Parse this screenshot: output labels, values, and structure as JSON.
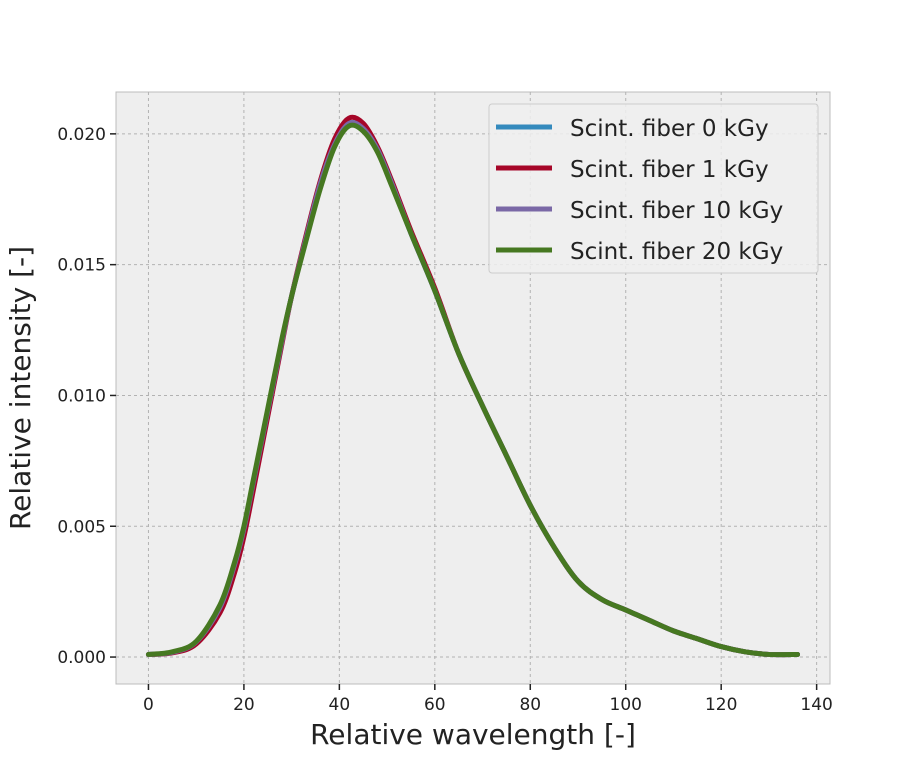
{
  "chart_data": {
    "type": "line",
    "title": "",
    "xlabel": "Relative wavelength [-]",
    "ylabel": "Relative intensity [-]",
    "xlim": [
      -6.8,
      142.8
    ],
    "ylim": [
      -0.00103,
      0.0216
    ],
    "xticks": [
      0,
      20,
      40,
      60,
      80,
      100,
      120,
      140
    ],
    "xtick_labels": [
      "0",
      "20",
      "40",
      "60",
      "80",
      "100",
      "120",
      "140"
    ],
    "yticks": [
      0,
      0.005,
      0.01,
      0.015,
      0.02
    ],
    "ytick_labels": [
      "0.000",
      "0.005",
      "0.010",
      "0.015",
      "0.020"
    ],
    "grid": true,
    "legend_position": "top-right",
    "background": "#eeeeee",
    "x": [
      0,
      5,
      10,
      15,
      18,
      20,
      22,
      25,
      28,
      30,
      33,
      36,
      39,
      42,
      45,
      48,
      51,
      55,
      60,
      65,
      70,
      75,
      80,
      85,
      90,
      95,
      100,
      105,
      110,
      115,
      120,
      125,
      130,
      136
    ],
    "series": [
      {
        "name": "Scint. fiber 0 kGy",
        "color": "#348ABD",
        "values": [
          0.0001,
          0.00018,
          0.00058,
          0.0019,
          0.0035,
          0.0049,
          0.0067,
          0.0094,
          0.0121,
          0.0138,
          0.016,
          0.0181,
          0.0196,
          0.0204,
          0.0202,
          0.0194,
          0.0181,
          0.0162,
          0.014,
          0.0116,
          0.0096,
          0.0077,
          0.0058,
          0.0042,
          0.0029,
          0.0022,
          0.0018,
          0.0014,
          0.001,
          0.0007,
          0.0004,
          0.0002,
          0.0001,
          0.0001
        ]
      },
      {
        "name": "Scint. fiber 1 kGy",
        "color": "#A60628",
        "values": [
          0.0001,
          0.00016,
          0.0005,
          0.0017,
          0.0032,
          0.0046,
          0.0064,
          0.0092,
          0.012,
          0.0138,
          0.0161,
          0.0182,
          0.0198,
          0.0206,
          0.0204,
          0.0195,
          0.0182,
          0.0163,
          0.0141,
          0.0116,
          0.0096,
          0.0077,
          0.0058,
          0.0042,
          0.0029,
          0.0022,
          0.0018,
          0.0014,
          0.001,
          0.0007,
          0.0004,
          0.0002,
          0.0001,
          0.0001
        ]
      },
      {
        "name": "Scint. fiber 10 kGy",
        "color": "#7A68A6",
        "values": [
          0.0001,
          0.00018,
          0.00058,
          0.0019,
          0.0035,
          0.0049,
          0.0067,
          0.0094,
          0.0121,
          0.0138,
          0.016,
          0.0181,
          0.0196,
          0.0204,
          0.0202,
          0.0194,
          0.0181,
          0.0162,
          0.014,
          0.0116,
          0.0096,
          0.0077,
          0.0058,
          0.0042,
          0.0029,
          0.0022,
          0.0018,
          0.0014,
          0.001,
          0.0007,
          0.0004,
          0.0002,
          0.0001,
          0.0001
        ]
      },
      {
        "name": "Scint. fiber 20 kGy",
        "color": "#467821",
        "values": [
          0.0001,
          0.0002,
          0.0006,
          0.002,
          0.0036,
          0.005,
          0.0068,
          0.0095,
          0.0122,
          0.0138,
          0.0159,
          0.0179,
          0.0195,
          0.0203,
          0.0201,
          0.0193,
          0.018,
          0.0162,
          0.014,
          0.0116,
          0.0096,
          0.0077,
          0.0058,
          0.0042,
          0.0029,
          0.0022,
          0.0018,
          0.0014,
          0.001,
          0.0007,
          0.0004,
          0.0002,
          0.0001,
          0.0001
        ]
      }
    ]
  }
}
